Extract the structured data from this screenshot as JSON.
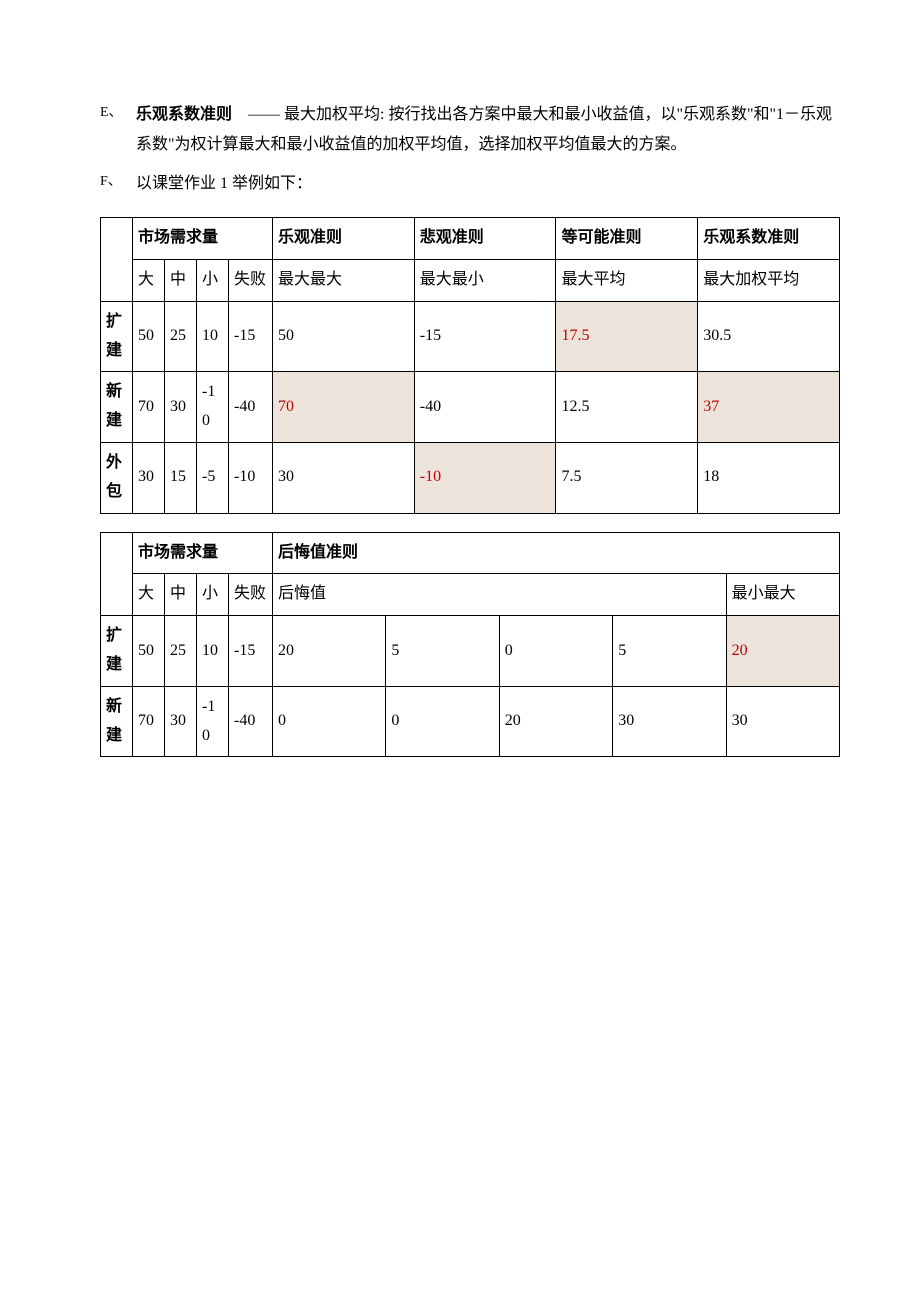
{
  "itemE": {
    "marker": "E、",
    "label": "乐观系数准则",
    "desc": "—— 最大加权平均: 按行找出各方案中最大和最小收益值，以\"乐观系数\"和\"1－乐观系数\"为权计算最大和最小收益值的加权平均值，选择加权平均值最大的方案。"
  },
  "itemF": {
    "marker": "F、",
    "text": "以课堂作业 1 举例如下："
  },
  "table1": {
    "headers": {
      "demand": "市场需求量",
      "optimistic": "乐观准则",
      "pessimistic": "悲观准则",
      "equalprob": "等可能准则",
      "optcoef": "乐观系数准则",
      "big": "大",
      "mid": "中",
      "small": "小",
      "fail": "失败",
      "maxmax": "最大最大",
      "maxmin": "最大最小",
      "maxavg": "最大平均",
      "maxweighted": "最大加权平均"
    },
    "rows": [
      {
        "label": "扩建",
        "d": [
          "50",
          "25",
          "10",
          "-15"
        ],
        "opt": "50",
        "pes": "-15",
        "eq": "17.5",
        "coef": "30.5",
        "hl": {
          "eq": true
        }
      },
      {
        "label": "新建",
        "d": [
          "70",
          "30",
          "-10",
          "-40"
        ],
        "opt": "70",
        "pes": "-40",
        "eq": "12.5",
        "coef": "37",
        "hl": {
          "opt": true,
          "coef": true
        }
      },
      {
        "label": "外包",
        "d": [
          "30",
          "15",
          "-5",
          "-10"
        ],
        "opt": "30",
        "pes": "-10",
        "eq": "7.5",
        "coef": "18",
        "hl": {
          "pes": true
        }
      }
    ]
  },
  "table2": {
    "headers": {
      "demand": "市场需求量",
      "regret": "后悔值准则",
      "big": "大",
      "mid": "中",
      "small": "小",
      "fail": "失败",
      "regretval": "后悔值",
      "minmax": "最小最大"
    },
    "rows": [
      {
        "label": "扩建",
        "d": [
          "50",
          "25",
          "10",
          "-15"
        ],
        "r": [
          "20",
          "5",
          "0",
          "5"
        ],
        "mm": "20",
        "hl": {
          "mm": true
        }
      },
      {
        "label": "新建",
        "d": [
          "70",
          "30",
          "-10",
          "-40"
        ],
        "r": [
          "0",
          "0",
          "20",
          "30"
        ],
        "mm": "30",
        "hl": {}
      }
    ]
  },
  "colors": {
    "highlight_bg": "#ece4da",
    "highlight_text": "#c00000"
  }
}
